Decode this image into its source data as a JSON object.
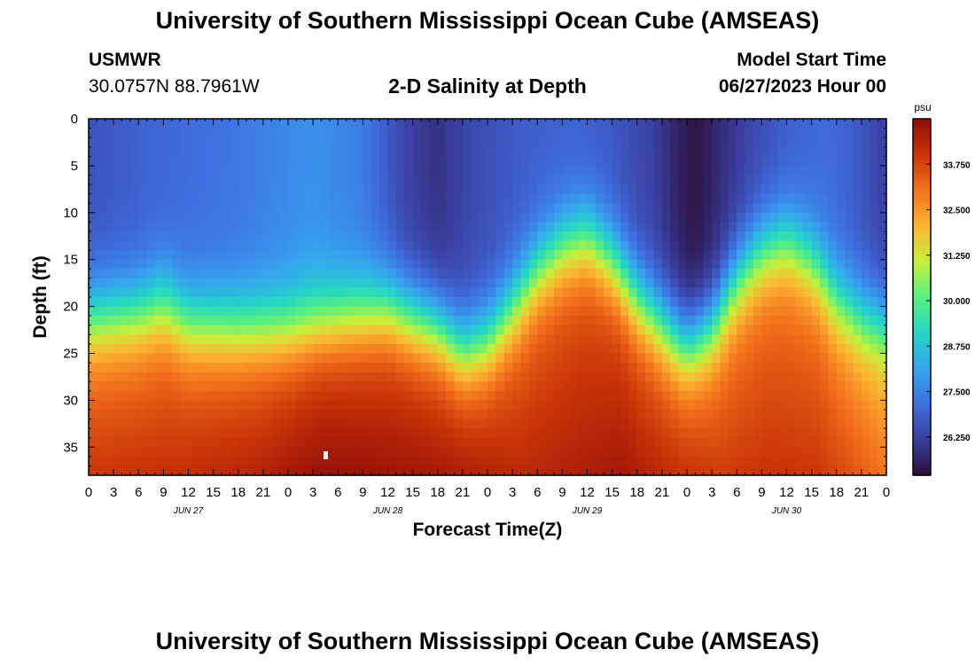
{
  "header": {
    "title": "University of Southern Mississippi Ocean Cube (AMSEAS)",
    "station": "USMWR",
    "coords": "30.0757N  88.7961W",
    "subtitle": "2-D Salinity at Depth",
    "model_start_label": "Model Start Time",
    "model_start_value": "06/27/2023 Hour 00"
  },
  "footer": {
    "title": "University of Southern Mississippi Ocean Cube (AMSEAS)"
  },
  "colors": {
    "colormap": [
      "#2a0f3a",
      "#3a3e9e",
      "#3f6fe0",
      "#35a6ee",
      "#24d6c7",
      "#59f07f",
      "#c6f03a",
      "#fcb631",
      "#f2721d",
      "#cb3507",
      "#900d0a"
    ]
  },
  "chart_data": {
    "type": "heatmap",
    "title": "2-D Salinity at Depth",
    "xlabel": "Forecast Time(Z)",
    "ylabel": "Depth (ft)",
    "x_range_hours": [
      0,
      96
    ],
    "y_range_ft": [
      0,
      38
    ],
    "y_inverted": true,
    "x_tick_step_hours": 3,
    "x_tick_labels": [
      "0",
      "3",
      "6",
      "9",
      "12",
      "15",
      "18",
      "21",
      "0",
      "3",
      "6",
      "9",
      "12",
      "15",
      "18",
      "21",
      "0",
      "3",
      "6",
      "9",
      "12",
      "15",
      "18",
      "21",
      "0",
      "3",
      "6",
      "9",
      "12",
      "15",
      "18",
      "21",
      "0"
    ],
    "day_labels": [
      {
        "label": "JUN 27",
        "hour": 12
      },
      {
        "label": "JUN 28",
        "hour": 36
      },
      {
        "label": "JUN 29",
        "hour": 60
      },
      {
        "label": "JUN 30",
        "hour": 84
      }
    ],
    "y_ticks": [
      0,
      5,
      10,
      15,
      20,
      25,
      30,
      35
    ],
    "y_tick_labels": [
      "0",
      "5",
      "10",
      "15",
      "20",
      "25",
      "30",
      "35"
    ],
    "colorbar": {
      "unit": "psu",
      "min": 25.2,
      "max": 35.0,
      "ticks": [
        26.25,
        27.5,
        28.75,
        30.0,
        31.25,
        32.5,
        33.75
      ],
      "tick_labels": [
        "26.250",
        "27.500",
        "28.750",
        "30.000",
        "31.250",
        "32.500",
        "33.750"
      ]
    },
    "halocline_depth_ft": {
      "hours": [
        0,
        6,
        9,
        12,
        18,
        24,
        30,
        36,
        42,
        45,
        48,
        51,
        54,
        57,
        60,
        63,
        66,
        70,
        72,
        75,
        78,
        81,
        84,
        87,
        90,
        93,
        96
      ],
      "values": [
        21,
        20.5,
        19.5,
        21.5,
        22,
        22,
        21,
        20,
        22,
        24.5,
        23.5,
        20,
        16,
        13.5,
        12.5,
        15,
        19,
        22.5,
        24,
        22,
        17,
        14,
        13,
        15,
        19,
        21,
        22
      ]
    },
    "surface_salinity_psu": {
      "hours": [
        0,
        9,
        18,
        27,
        33,
        38,
        42,
        46,
        52,
        58,
        63,
        68,
        71,
        73,
        76,
        80,
        85,
        89,
        92,
        96
      ],
      "values": [
        26.6,
        27.0,
        27.3,
        27.8,
        27.4,
        26.3,
        25.9,
        26.4,
        26.8,
        26.9,
        26.7,
        26.2,
        25.6,
        25.3,
        25.8,
        26.4,
        26.9,
        27.1,
        26.8,
        26.2
      ]
    },
    "bottom_salinity_psu": {
      "hours": [
        0,
        12,
        20,
        28,
        36,
        44,
        52,
        58,
        64,
        70,
        76,
        82,
        88,
        92,
        96
      ],
      "values": [
        34.0,
        34.2,
        34.4,
        34.9,
        34.8,
        34.6,
        34.3,
        34.5,
        34.7,
        34.2,
        33.9,
        34.1,
        34.0,
        33.5,
        33.0
      ]
    }
  }
}
